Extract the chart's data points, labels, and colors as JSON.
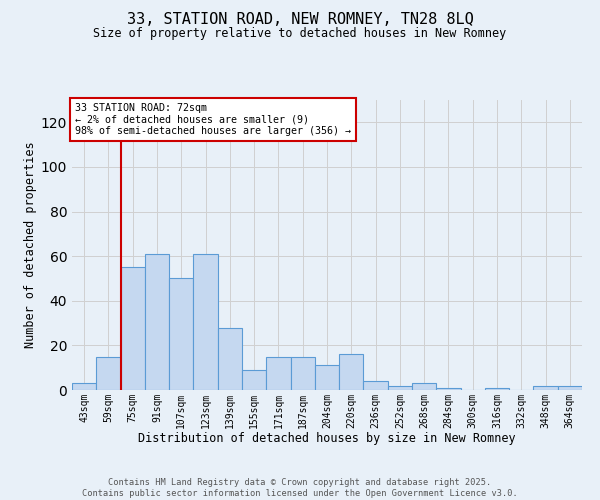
{
  "title_line1": "33, STATION ROAD, NEW ROMNEY, TN28 8LQ",
  "title_line2": "Size of property relative to detached houses in New Romney",
  "xlabel": "Distribution of detached houses by size in New Romney",
  "ylabel": "Number of detached properties",
  "bins": [
    "43sqm",
    "59sqm",
    "75sqm",
    "91sqm",
    "107sqm",
    "123sqm",
    "139sqm",
    "155sqm",
    "171sqm",
    "187sqm",
    "204sqm",
    "220sqm",
    "236sqm",
    "252sqm",
    "268sqm",
    "284sqm",
    "300sqm",
    "316sqm",
    "332sqm",
    "348sqm",
    "364sqm"
  ],
  "values": [
    3,
    15,
    55,
    61,
    50,
    61,
    28,
    9,
    15,
    15,
    11,
    16,
    4,
    2,
    3,
    1,
    0,
    1,
    0,
    2,
    2
  ],
  "bar_color": "#c5d8f0",
  "bar_edge_color": "#5b9bd5",
  "grid_color": "#d0d0d0",
  "vline_x_index": 2,
  "vline_color": "#cc0000",
  "annotation_text": "33 STATION ROAD: 72sqm\n← 2% of detached houses are smaller (9)\n98% of semi-detached houses are larger (356) →",
  "annotation_box_color": "#ffffff",
  "annotation_box_edge": "#cc0000",
  "ylim": [
    0,
    130
  ],
  "yticks": [
    0,
    20,
    40,
    60,
    80,
    100,
    120
  ],
  "footer_line1": "Contains HM Land Registry data © Crown copyright and database right 2025.",
  "footer_line2": "Contains public sector information licensed under the Open Government Licence v3.0.",
  "bg_color": "#e8f0f8"
}
